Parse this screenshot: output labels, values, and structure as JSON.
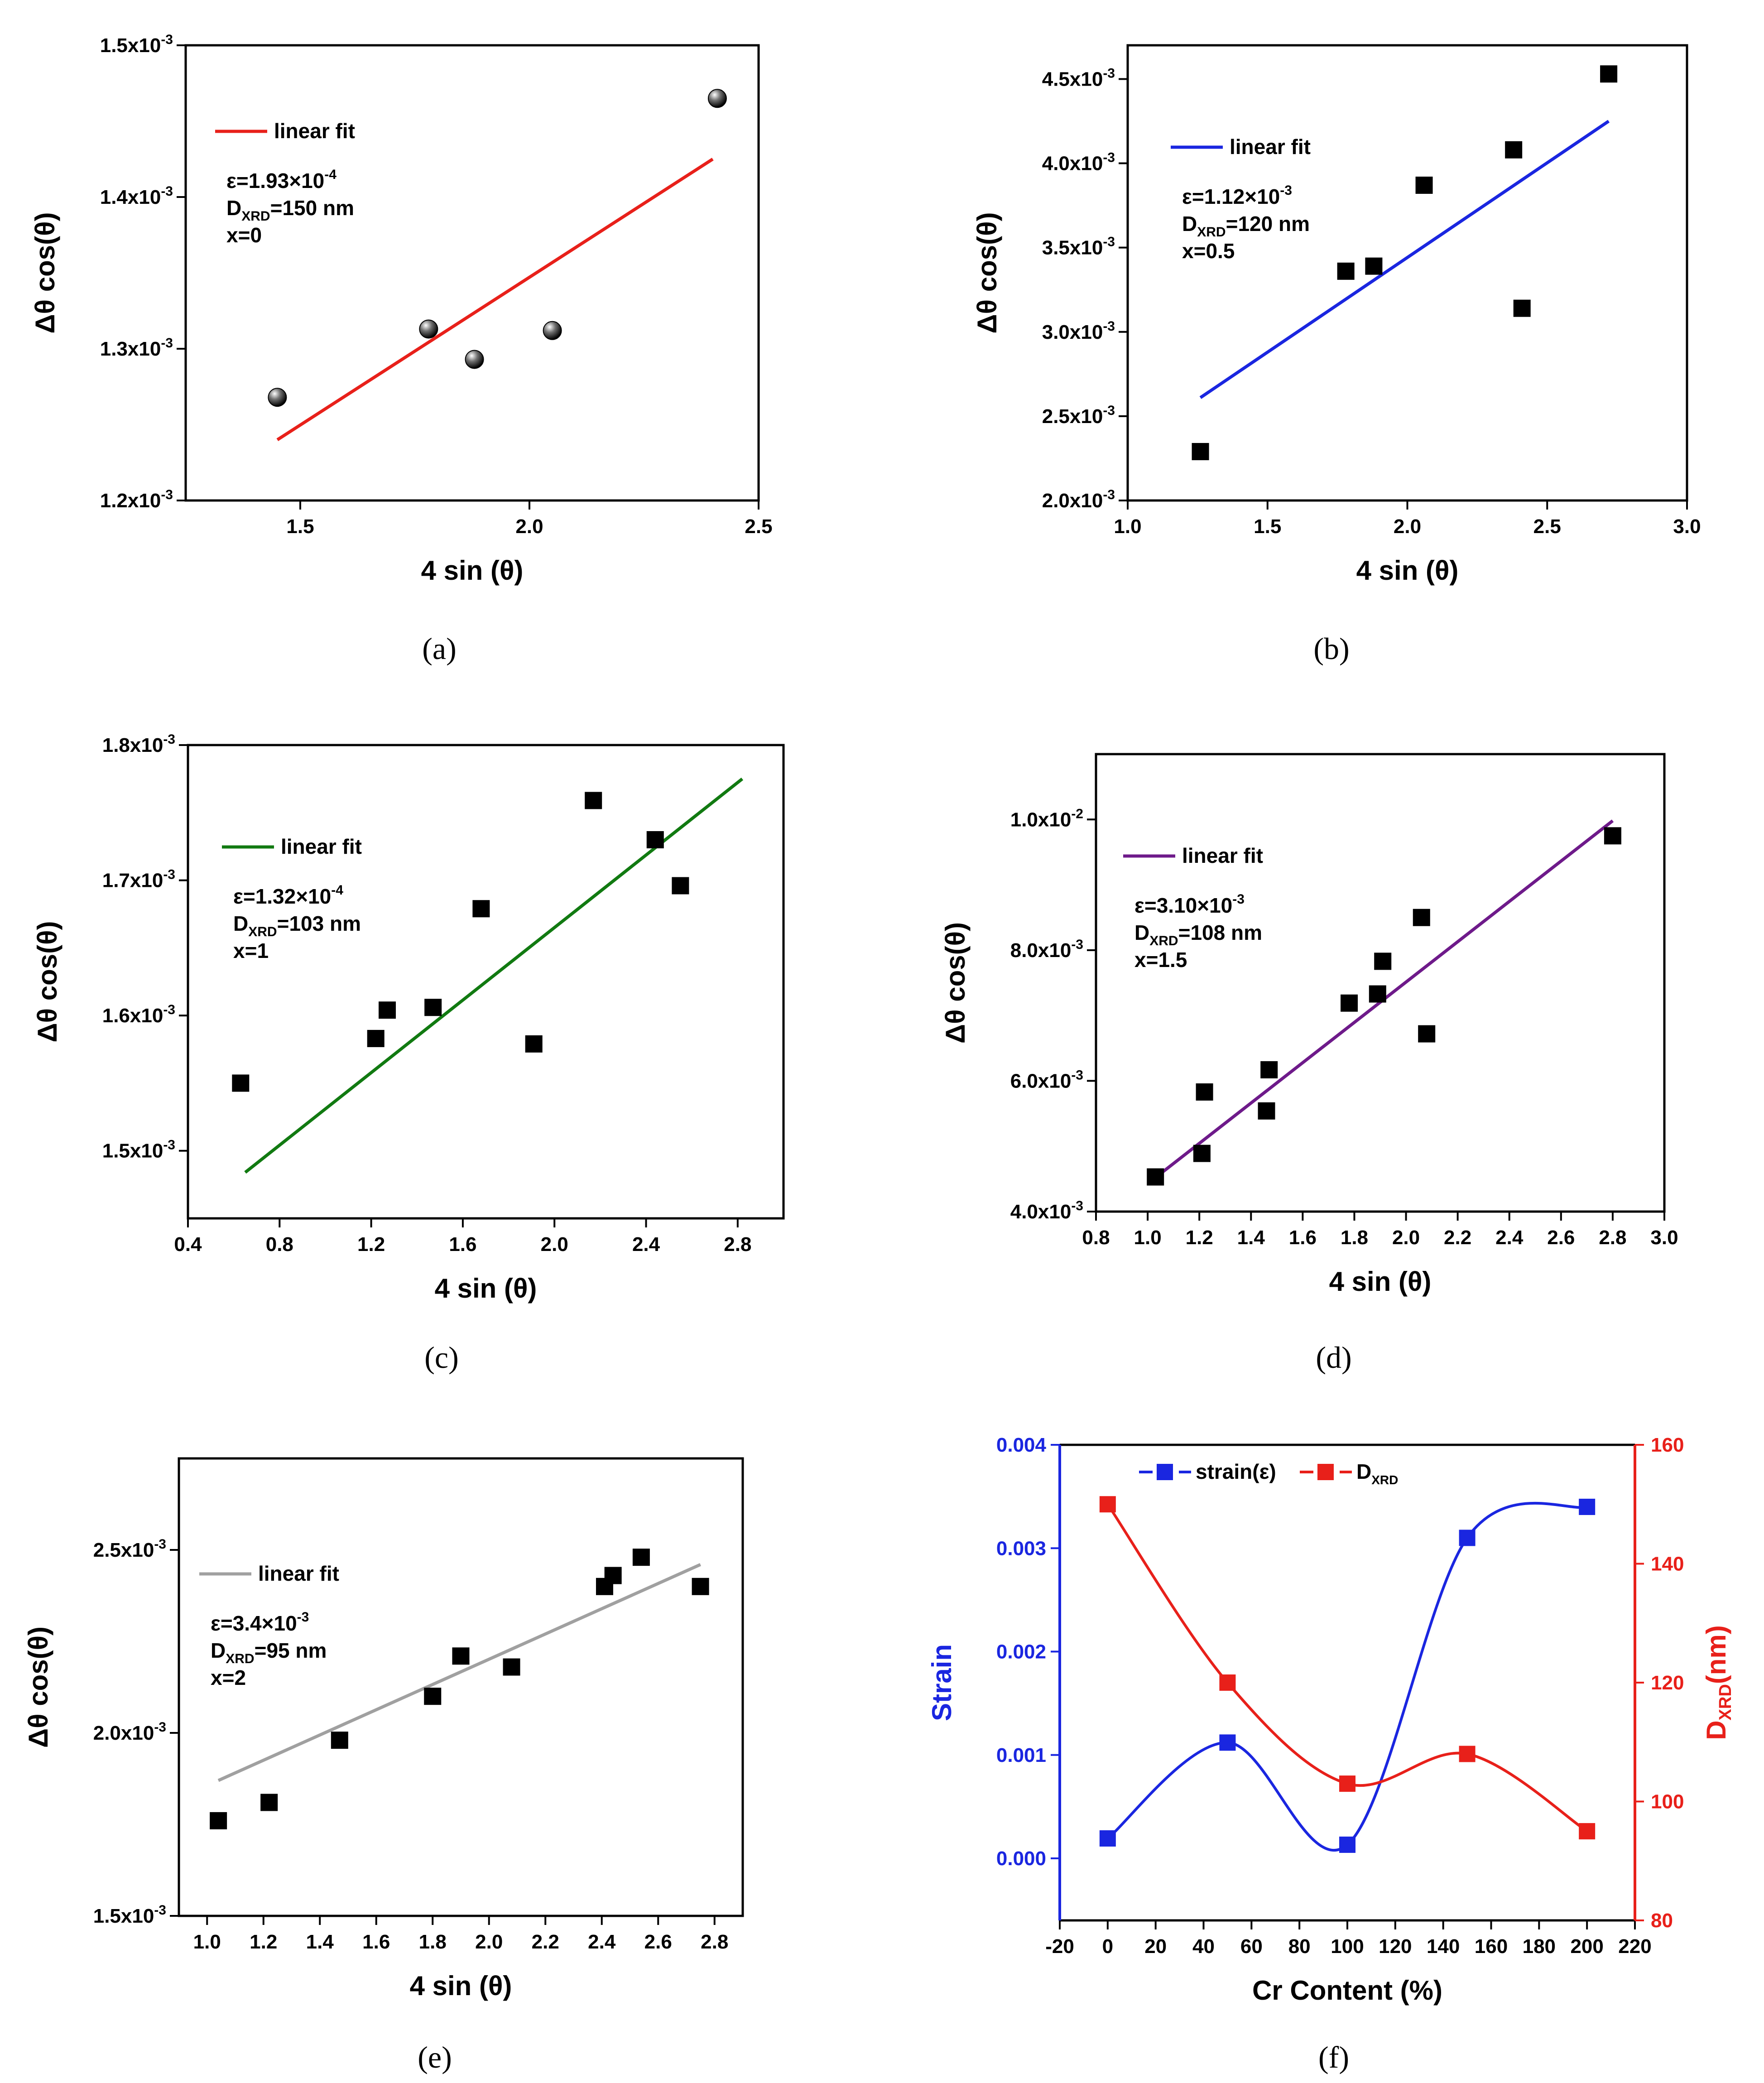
{
  "chart_data": [
    {
      "panel": "(a)",
      "type": "scatter",
      "xlabel": "4 sin (θ)",
      "ylabel": "Δθ cos(θ)",
      "xlim": [
        1.25,
        2.5
      ],
      "ylim": [
        0.0012,
        0.0015
      ],
      "x_ticks": [
        1.5,
        2.0,
        2.5
      ],
      "x_tick_labels": [
        "1.5",
        "2.0",
        "2.5"
      ],
      "y_ticks": [
        0.0012,
        0.0013,
        0.0014,
        0.0015
      ],
      "y_tick_labels": [
        "1.2x10-3",
        "1.3x10-3",
        "1.4x10-3",
        "1.5x10-3"
      ],
      "marker": "sphere",
      "fit_color": "#e8201a",
      "legend": "linear fit",
      "annotations": [
        "ε=1.93×10-4",
        "DXRD=150 nm",
        "x=0"
      ],
      "points": {
        "x": [
          1.45,
          1.78,
          1.88,
          2.05,
          2.41
        ],
        "y": [
          0.001268,
          0.001313,
          0.001293,
          0.001312,
          0.001465
        ]
      },
      "fit": {
        "x": [
          1.45,
          2.4
        ],
        "y": [
          0.00124,
          0.001425
        ]
      }
    },
    {
      "panel": "(b)",
      "type": "scatter",
      "xlabel": "4 sin (θ)",
      "ylabel": "Δθ cos(θ)",
      "xlim": [
        1.0,
        3.0
      ],
      "ylim": [
        0.002,
        0.0047
      ],
      "x_ticks": [
        1.0,
        1.5,
        2.0,
        2.5,
        3.0
      ],
      "x_tick_labels": [
        "1.0",
        "1.5",
        "2.0",
        "2.5",
        "3.0"
      ],
      "y_ticks": [
        0.002,
        0.0025,
        0.003,
        0.0035,
        0.004,
        0.0045
      ],
      "y_tick_labels": [
        "2.0x10-3",
        "2.5x10-3",
        "3.0x10-3",
        "3.5x10-3",
        "4.0x10-3",
        "4.5x10-3"
      ],
      "marker": "square",
      "fit_color": "#1a26e0",
      "legend": "linear fit",
      "annotations": [
        "ε=1.12×10-3",
        "DXRD=120 nm",
        "x=0.5"
      ],
      "points": {
        "x": [
          1.26,
          1.78,
          1.88,
          2.06,
          2.38,
          2.41,
          2.72
        ],
        "y": [
          0.00229,
          0.00336,
          0.00339,
          0.00387,
          0.00408,
          0.00314,
          0.00453
        ]
      },
      "fit": {
        "x": [
          1.26,
          2.72
        ],
        "y": [
          0.00261,
          0.00425
        ]
      }
    },
    {
      "panel": "(c)",
      "type": "scatter",
      "xlabel": "4 sin (θ)",
      "ylabel": "Δθ cos(θ)",
      "xlim": [
        0.4,
        3.0
      ],
      "ylim": [
        0.00145,
        0.0018
      ],
      "x_ticks": [
        0.4,
        0.8,
        1.2,
        1.6,
        2.0,
        2.4,
        2.8
      ],
      "x_tick_labels": [
        "0.4",
        "0.8",
        "1.2",
        "1.6",
        "2.0",
        "2.4",
        "2.8"
      ],
      "y_ticks": [
        0.0015,
        0.0016,
        0.0017,
        0.0018
      ],
      "y_tick_labels": [
        "1.5x10-3",
        "1.6x10-3",
        "1.7x10-3",
        "1.8x10-3"
      ],
      "marker": "square",
      "fit_color": "#117a11",
      "legend": "linear fit",
      "annotations": [
        "ε=1.32×10-4",
        "DXRD=103 nm",
        "x=1"
      ],
      "points": {
        "x": [
          0.63,
          1.22,
          1.27,
          1.47,
          1.68,
          1.91,
          2.17,
          2.44,
          2.55
        ],
        "y": [
          0.00155,
          0.001583,
          0.001604,
          0.001606,
          0.001679,
          0.001579,
          0.001759,
          0.00173,
          0.001696
        ]
      },
      "fit": {
        "x": [
          0.65,
          2.82
        ],
        "y": [
          0.001484,
          0.001775
        ]
      }
    },
    {
      "panel": "(d)",
      "type": "scatter",
      "xlabel": "4 sin (θ)",
      "ylabel": "Δθ cos(θ)",
      "xlim": [
        0.8,
        3.0
      ],
      "ylim": [
        0.004,
        0.011
      ],
      "x_ticks": [
        0.8,
        1.0,
        1.2,
        1.4,
        1.6,
        1.8,
        2.0,
        2.2,
        2.4,
        2.6,
        2.8,
        3.0
      ],
      "x_tick_labels": [
        "0.8",
        "1.0",
        "1.2",
        "1.4",
        "1.6",
        "1.8",
        "2.0",
        "2.2",
        "2.4",
        "2.6",
        "2.8",
        "3.0"
      ],
      "y_ticks": [
        0.004,
        0.006,
        0.008,
        0.01
      ],
      "y_tick_labels": [
        "4.0x10-3",
        "6.0x10-3",
        "8.0x10-3",
        "1.0x10-2"
      ],
      "marker": "square",
      "fit_color": "#6e1a8a",
      "legend": "linear fit",
      "annotations": [
        "ε=3.10×10-3",
        "DXRD=108 nm",
        "x=1.5"
      ],
      "points": {
        "x": [
          1.03,
          1.21,
          1.22,
          1.46,
          1.47,
          1.78,
          1.89,
          1.91,
          2.06,
          2.08,
          2.8
        ],
        "y": [
          0.00453,
          0.00489,
          0.00583,
          0.00554,
          0.00617,
          0.00719,
          0.00733,
          0.00783,
          0.0085,
          0.00672,
          0.00975
        ]
      },
      "fit": {
        "x": [
          1.04,
          2.8
        ],
        "y": [
          0.00455,
          0.00998
        ]
      }
    },
    {
      "panel": "(e)",
      "type": "scatter",
      "xlabel": "4 sin (θ)",
      "ylabel": "Δθ cos(θ)",
      "xlim": [
        0.9,
        2.9
      ],
      "ylim": [
        0.0015,
        0.00275
      ],
      "x_ticks": [
        1.0,
        1.2,
        1.4,
        1.6,
        1.8,
        2.0,
        2.2,
        2.4,
        2.6,
        2.8
      ],
      "x_tick_labels": [
        "1.0",
        "1.2",
        "1.4",
        "1.6",
        "1.8",
        "2.0",
        "2.2",
        "2.4",
        "2.6",
        "2.8"
      ],
      "y_ticks": [
        0.0015,
        0.002,
        0.0025
      ],
      "y_tick_labels": [
        "1.5x10-3",
        "2.0x10-3",
        "2.5x10-3"
      ],
      "marker": "square",
      "fit_color": "#a0a0a0",
      "legend": "linear fit",
      "annotations": [
        "ε=3.4×10-3",
        "DXRD=95 nm",
        "x=2"
      ],
      "points": {
        "x": [
          1.04,
          1.22,
          1.47,
          1.8,
          1.9,
          2.08,
          2.41,
          2.44,
          2.54,
          2.75
        ],
        "y": [
          0.00176,
          0.00181,
          0.00198,
          0.0021,
          0.00221,
          0.00218,
          0.0024,
          0.00243,
          0.00248,
          0.0024
        ]
      },
      "fit": {
        "x": [
          1.04,
          2.75
        ],
        "y": [
          0.00187,
          0.00246
        ]
      }
    },
    {
      "panel": "(f)",
      "type": "line",
      "xlabel": "Cr Content (%)",
      "ylabel": "Strain",
      "y2label": "DXRD(nm)",
      "xlim": [
        -20,
        220
      ],
      "ylim": [
        -0.0006,
        0.004
      ],
      "y2lim": [
        80,
        160
      ],
      "x_ticks": [
        -20,
        0,
        20,
        40,
        60,
        80,
        100,
        120,
        140,
        160,
        180,
        200,
        220
      ],
      "x_tick_labels": [
        "-20",
        "0",
        "20",
        "40",
        "60",
        "80",
        "100",
        "120",
        "140",
        "160",
        "180",
        "200",
        "220"
      ],
      "y_ticks": [
        0.0,
        0.001,
        0.002,
        0.003,
        0.004
      ],
      "y_tick_labels": [
        "0.000",
        "0.001",
        "0.002",
        "0.003",
        "0.004"
      ],
      "y2_ticks": [
        80,
        100,
        120,
        140,
        160
      ],
      "y2_tick_labels": [
        "80",
        "100",
        "120",
        "140",
        "160"
      ],
      "series": [
        {
          "name": "strain(ε)",
          "color": "#1a26e0",
          "axis": "left",
          "x": [
            0,
            50,
            100,
            150,
            200
          ],
          "y": [
            0.000193,
            0.00112,
            0.000132,
            0.0031,
            0.0034
          ]
        },
        {
          "name": "DXRD",
          "color": "#e8201a",
          "axis": "right",
          "x": [
            0,
            50,
            100,
            150,
            200
          ],
          "y": [
            150,
            120,
            103,
            108,
            95
          ]
        }
      ]
    }
  ]
}
